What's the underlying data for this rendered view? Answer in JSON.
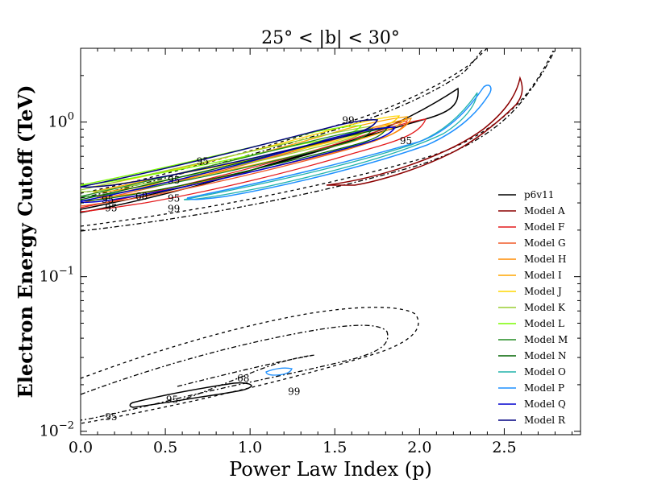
{
  "chart_data": {
    "type": "line",
    "title": "25° < |b| < 30°",
    "xlabel": "Power Law Index (p)",
    "ylabel": "Electron Energy Cutoff (TeV)",
    "xlim": [
      0.0,
      2.95
    ],
    "ylim": [
      0.0095,
      3.0
    ],
    "yscale": "log",
    "grid": false,
    "legend_position": "right-middle",
    "x_ticks": [
      "0.0",
      "0.5",
      "1.0",
      "1.5",
      "2.0",
      "2.5"
    ],
    "y_ticks": [
      {
        "base": "10",
        "exp": "0",
        "value": 1.0
      },
      {
        "base": "10",
        "exp": "−1",
        "value": 0.1
      },
      {
        "base": "10",
        "exp": "−2",
        "value": 0.01
      }
    ],
    "contour_levels": [
      {
        "label": "68",
        "style": "solid"
      },
      {
        "label": "95",
        "style": "dashed"
      },
      {
        "label": "99",
        "style": "dash-dot"
      }
    ],
    "annotations": [
      {
        "text": "99",
        "x": 1.58,
        "y": 0.98
      },
      {
        "text": "95",
        "x": 0.72,
        "y": 0.53
      },
      {
        "text": "95",
        "x": 0.55,
        "y": 0.4
      },
      {
        "text": "68",
        "x": 0.36,
        "y": 0.315
      },
      {
        "text": "95",
        "x": 0.16,
        "y": 0.3
      },
      {
        "text": "95",
        "x": 0.18,
        "y": 0.265
      },
      {
        "text": "95",
        "x": 0.55,
        "y": 0.305
      },
      {
        "text": "99",
        "x": 0.55,
        "y": 0.262
      },
      {
        "text": "95",
        "x": 1.92,
        "y": 0.72
      },
      {
        "text": "68",
        "x": 0.96,
        "y": 0.021
      },
      {
        "text": "95",
        "x": 0.54,
        "y": 0.0153
      },
      {
        "text": "99",
        "x": 1.26,
        "y": 0.0172
      },
      {
        "text": "95",
        "x": 0.18,
        "y": 0.0118
      }
    ],
    "series": [
      {
        "name": "p6v11",
        "color": "#000000",
        "x": [
          0.3,
          2.27
        ],
        "y_range": [
          0.016,
          1.7
        ]
      },
      {
        "name": "Model A",
        "color": "#8b0000",
        "x": [
          1.45,
          2.63
        ],
        "y_range": [
          0.38,
          1.95
        ]
      },
      {
        "name": "Model F",
        "color": "#e41a1c",
        "x": [
          0.0,
          2.05
        ],
        "y_range": [
          0.26,
          1.05
        ]
      },
      {
        "name": "Model G",
        "color": "#f05a28",
        "x": [
          0.0,
          1.9
        ],
        "y_range": [
          0.27,
          1.0
        ]
      },
      {
        "name": "Model H",
        "color": "#ff8c00",
        "x": [
          0.05,
          1.85
        ],
        "y_range": [
          0.3,
          1.05
        ]
      },
      {
        "name": "Model I",
        "color": "#ffa500",
        "x": [
          0.05,
          1.8
        ],
        "y_range": [
          0.3,
          1.0
        ]
      },
      {
        "name": "Model J",
        "color": "#ffd700",
        "x": [
          0.05,
          1.75
        ],
        "y_range": [
          0.32,
          0.95
        ]
      },
      {
        "name": "Model K",
        "color": "#9acd32",
        "x": [
          0.0,
          1.6
        ],
        "y_range": [
          0.3,
          0.9
        ]
      },
      {
        "name": "Model L",
        "color": "#7cfc00",
        "x": [
          0.0,
          1.5
        ],
        "y_range": [
          0.32,
          0.85
        ]
      },
      {
        "name": "Model M",
        "color": "#228b22",
        "x": [
          0.0,
          1.6
        ],
        "y_range": [
          0.3,
          0.88
        ]
      },
      {
        "name": "Model N",
        "color": "#006400",
        "x": [
          0.0,
          1.7
        ],
        "y_range": [
          0.28,
          0.92
        ]
      },
      {
        "name": "Model O",
        "color": "#20b2aa",
        "x": [
          0.6,
          2.35
        ],
        "y_range": [
          0.32,
          1.5
        ]
      },
      {
        "name": "Model P",
        "color": "#1e90ff",
        "x": [
          0.65,
          2.42
        ],
        "y_range": [
          0.025,
          1.8
        ]
      },
      {
        "name": "Model Q",
        "color": "#0000cd",
        "x": [
          0.0,
          1.8
        ],
        "y_range": [
          0.26,
          0.95
        ]
      },
      {
        "name": "Model R",
        "color": "#000080",
        "x": [
          0.0,
          1.85
        ],
        "y_range": [
          0.28,
          1.0
        ]
      }
    ]
  }
}
